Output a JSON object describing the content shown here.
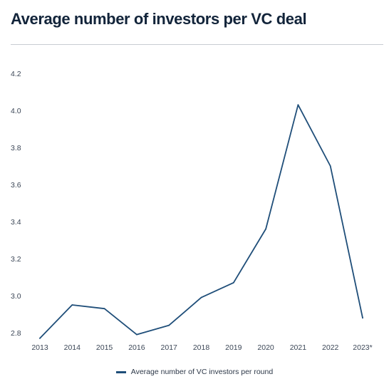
{
  "title": "Average number of investors per VC deal",
  "colors": {
    "line": "#1f4e79",
    "title": "#12243a",
    "rule": "#c8ccd2"
  },
  "chart_data": {
    "type": "line",
    "title": "Average number of investors per VC deal",
    "xlabel": "",
    "ylabel": "",
    "categories": [
      "2013",
      "2014",
      "2015",
      "2016",
      "2017",
      "2018",
      "2019",
      "2020",
      "2021",
      "2022",
      "2023*"
    ],
    "ylim": [
      2.8,
      4.2
    ],
    "yticks": [
      "2.8",
      "3.0",
      "3.2",
      "3.4",
      "3.6",
      "3.8",
      "4.0",
      "4.2"
    ],
    "series": [
      {
        "name": "Average number of VC investors per round",
        "values": [
          2.77,
          2.95,
          2.93,
          2.79,
          2.84,
          2.99,
          3.07,
          3.36,
          4.03,
          3.7,
          2.88
        ]
      }
    ],
    "grid": false,
    "legend": "bottom-center"
  }
}
